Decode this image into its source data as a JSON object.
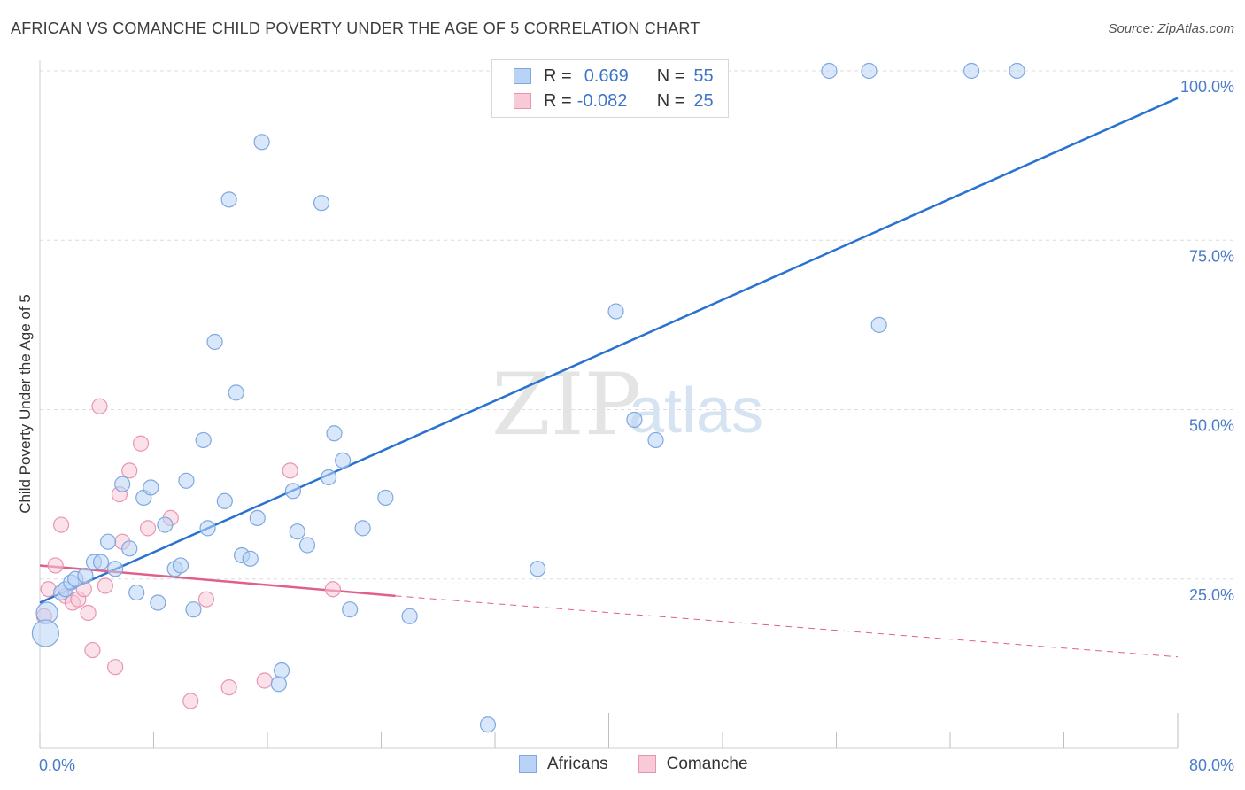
{
  "title": "AFRICAN VS COMANCHE CHILD POVERTY UNDER THE AGE OF 5 CORRELATION CHART",
  "source": "Source: ZipAtlas.com",
  "watermark": {
    "zip": "ZIP",
    "atlas": "atlas"
  },
  "legend": {
    "row1": {
      "r_label": "R =",
      "r_value": "0.669",
      "n_label": "N =",
      "n_value": "55"
    },
    "row2": {
      "r_label": "R =",
      "r_value": "-0.082",
      "n_label": "N =",
      "n_value": "25"
    }
  },
  "bottom_legend": {
    "africans": "Africans",
    "comanche": "Comanche"
  },
  "colors": {
    "africans_fill": "#b8d3f5",
    "africans_stroke": "#7fa8df",
    "africans_line": "#2a72d0",
    "comanche_fill": "#f8c9d7",
    "comanche_stroke": "#e896b0",
    "comanche_line": "#e0608a",
    "tick_text": "#4a7cc9",
    "grid": "#dcdcdc"
  },
  "chart_data": {
    "type": "scatter",
    "title": "AFRICAN VS COMANCHE CHILD POVERTY UNDER THE AGE OF 5 CORRELATION CHART",
    "xlabel": "",
    "ylabel": "Child Poverty Under the Age of 5",
    "xlim": [
      0,
      80
    ],
    "ylim": [
      0,
      100
    ],
    "x_ticks": [
      "0.0%",
      "80.0%"
    ],
    "y_ticks": [
      "25.0%",
      "50.0%",
      "75.0%",
      "100.0%"
    ],
    "y_tick_values": [
      25,
      50,
      75,
      100
    ],
    "grid": "horizontal dashed",
    "legend_position": "top-center",
    "series": [
      {
        "name": "Africans",
        "r": 0.669,
        "n": 55,
        "trend": {
          "x": [
            0,
            80
          ],
          "y": [
            21.5,
            96.0
          ]
        },
        "points": [
          [
            0.5,
            20.0
          ],
          [
            0.4,
            17.0
          ],
          [
            1.5,
            23.0
          ],
          [
            1.8,
            23.5
          ],
          [
            2.2,
            24.5
          ],
          [
            2.5,
            25.0
          ],
          [
            3.2,
            25.5
          ],
          [
            3.8,
            27.5
          ],
          [
            4.3,
            27.5
          ],
          [
            4.8,
            30.5
          ],
          [
            5.3,
            26.5
          ],
          [
            5.8,
            39.0
          ],
          [
            6.3,
            29.5
          ],
          [
            6.8,
            23.0
          ],
          [
            7.3,
            37.0
          ],
          [
            7.8,
            38.5
          ],
          [
            8.3,
            21.5
          ],
          [
            8.8,
            33.0
          ],
          [
            9.5,
            26.5
          ],
          [
            9.9,
            27.0
          ],
          [
            10.3,
            39.5
          ],
          [
            10.8,
            20.5
          ],
          [
            11.5,
            45.5
          ],
          [
            11.8,
            32.5
          ],
          [
            12.3,
            60.0
          ],
          [
            13.0,
            36.5
          ],
          [
            13.3,
            81.0
          ],
          [
            13.8,
            52.5
          ],
          [
            14.2,
            28.5
          ],
          [
            14.8,
            28.0
          ],
          [
            15.3,
            34.0
          ],
          [
            15.6,
            89.5
          ],
          [
            16.8,
            9.5
          ],
          [
            17.0,
            11.5
          ],
          [
            17.8,
            38.0
          ],
          [
            18.1,
            32.0
          ],
          [
            18.8,
            30.0
          ],
          [
            19.8,
            80.5
          ],
          [
            20.3,
            40.0
          ],
          [
            20.7,
            46.5
          ],
          [
            21.3,
            42.5
          ],
          [
            21.8,
            20.5
          ],
          [
            22.7,
            32.5
          ],
          [
            24.3,
            37.0
          ],
          [
            26.0,
            19.5
          ],
          [
            31.5,
            3.5
          ],
          [
            35.0,
            26.5
          ],
          [
            40.5,
            64.5
          ],
          [
            41.8,
            48.5
          ],
          [
            43.3,
            45.5
          ],
          [
            55.5,
            100.0
          ],
          [
            58.3,
            100.0
          ],
          [
            59.0,
            62.5
          ],
          [
            65.5,
            100.0
          ],
          [
            68.7,
            100.0
          ]
        ]
      },
      {
        "name": "Comanche",
        "r": -0.082,
        "n": 25,
        "trend": {
          "x": [
            0,
            25
          ],
          "y": [
            27.0,
            22.5
          ]
        },
        "trend_extended": {
          "x": [
            25,
            80
          ],
          "y": [
            22.5,
            13.5
          ]
        },
        "points": [
          [
            0.3,
            19.5
          ],
          [
            0.6,
            23.5
          ],
          [
            1.1,
            27.0
          ],
          [
            1.5,
            33.0
          ],
          [
            1.8,
            22.5
          ],
          [
            2.3,
            21.5
          ],
          [
            2.7,
            22.0
          ],
          [
            3.1,
            23.5
          ],
          [
            3.4,
            20.0
          ],
          [
            3.7,
            14.5
          ],
          [
            4.2,
            50.5
          ],
          [
            4.6,
            24.0
          ],
          [
            5.3,
            12.0
          ],
          [
            5.6,
            37.5
          ],
          [
            5.8,
            30.5
          ],
          [
            6.3,
            41.0
          ],
          [
            7.1,
            45.0
          ],
          [
            7.6,
            32.5
          ],
          [
            9.2,
            34.0
          ],
          [
            10.6,
            7.0
          ],
          [
            11.7,
            22.0
          ],
          [
            13.3,
            9.0
          ],
          [
            15.8,
            10.0
          ],
          [
            17.6,
            41.0
          ],
          [
            20.6,
            23.5
          ]
        ]
      }
    ]
  }
}
